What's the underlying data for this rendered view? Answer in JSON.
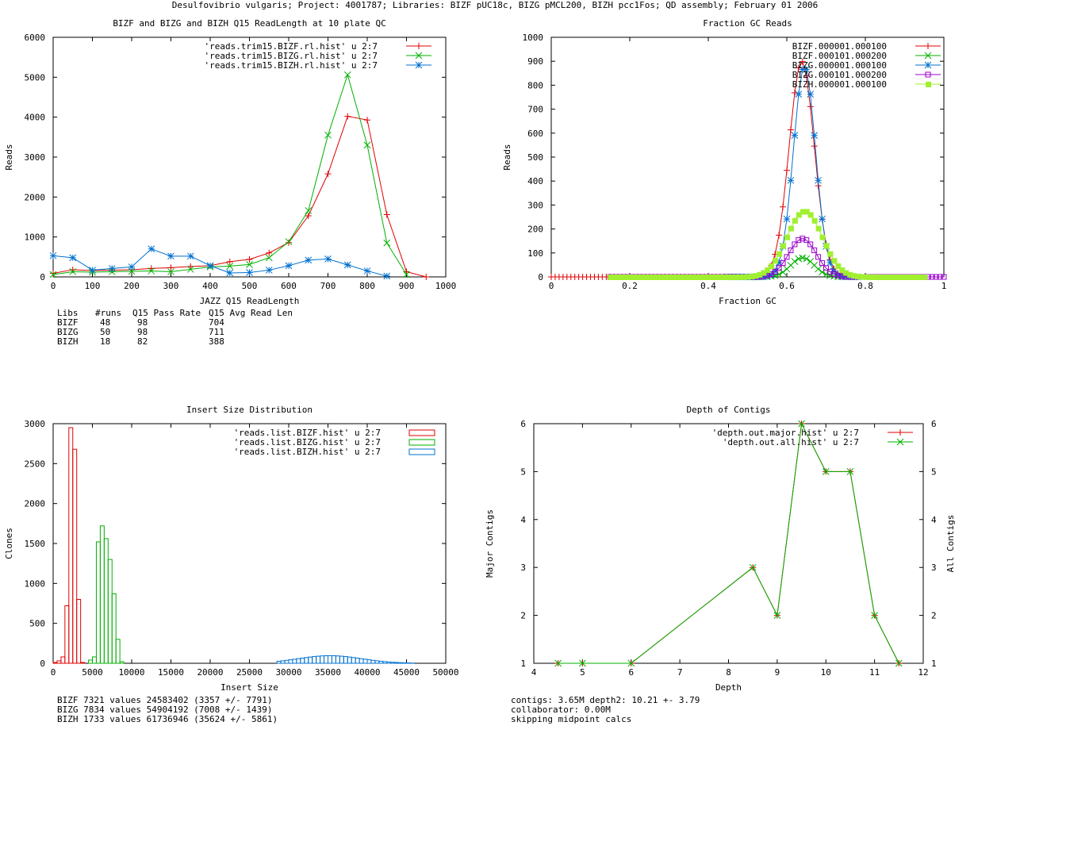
{
  "page_title": "Desulfovibrio vulgaris; Project: 4001787; Libraries: BIZF pUC18c, BIZG pMCL200, BIZH pcc1Fos; QD assembly; February 01 2006",
  "colors": {
    "red": "#e00000",
    "green": "#00b000",
    "blue": "#0070d0",
    "purple": "#9900cc",
    "lime": "#a0f030"
  },
  "chart_data": [
    {
      "id": "readlength",
      "type": "line",
      "title": "BIZF and BIZG and BIZH Q15 ReadLength at 10 plate QC",
      "xlabel": "JAZZ Q15 ReadLength",
      "ylabel": "Reads",
      "xlim": [
        0,
        1000
      ],
      "ylim": [
        0,
        6000
      ],
      "xticks": [
        0,
        100,
        200,
        300,
        400,
        500,
        600,
        700,
        800,
        900,
        1000
      ],
      "yticks": [
        0,
        1000,
        2000,
        3000,
        4000,
        5000,
        6000
      ],
      "legend_position": "top-right",
      "series": [
        {
          "name": "'reads.trim15.BIZF.rl.hist' u 2:7",
          "color": "#e00000",
          "marker": "plus",
          "x": [
            0,
            50,
            100,
            150,
            200,
            250,
            300,
            350,
            400,
            450,
            500,
            550,
            600,
            650,
            700,
            750,
            800,
            850,
            900,
            950
          ],
          "y": [
            90,
            180,
            160,
            170,
            180,
            210,
            230,
            260,
            280,
            380,
            440,
            600,
            860,
            1530,
            2580,
            4020,
            3930,
            1560,
            130,
            0
          ]
        },
        {
          "name": "'reads.trim15.BIZG.rl.hist' u 2:7",
          "color": "#00b000",
          "marker": "x",
          "x": [
            0,
            50,
            100,
            150,
            200,
            250,
            300,
            350,
            400,
            450,
            500,
            550,
            600,
            650,
            700,
            750,
            800,
            850,
            900
          ],
          "y": [
            60,
            130,
            120,
            130,
            140,
            150,
            130,
            190,
            250,
            270,
            310,
            480,
            880,
            1660,
            3550,
            5060,
            3300,
            850,
            60
          ]
        },
        {
          "name": "'reads.trim15.BIZH.rl.hist' u 2:7",
          "color": "#0070d0",
          "marker": "star",
          "x": [
            0,
            50,
            100,
            150,
            200,
            250,
            300,
            350,
            400,
            450,
            500,
            550,
            600,
            650,
            700,
            750,
            800,
            850
          ],
          "y": [
            530,
            480,
            170,
            210,
            250,
            700,
            520,
            520,
            280,
            100,
            110,
            170,
            280,
            420,
            450,
            300,
            150,
            20
          ]
        }
      ],
      "stats": {
        "header": [
          "Libs",
          "#runs",
          "Q15 Pass Rate",
          "Q15 Avg Read Len"
        ],
        "rows": [
          [
            "BIZF",
            "48",
            "98",
            "704"
          ],
          [
            "BIZG",
            "50",
            "98",
            "711"
          ],
          [
            "BIZH",
            "18",
            "82",
            "388"
          ]
        ]
      }
    },
    {
      "id": "gc",
      "type": "line",
      "title": "Fraction GC Reads",
      "xlabel": "Fraction GC",
      "ylabel": "Reads",
      "xlim": [
        0,
        1
      ],
      "ylim": [
        0,
        1000
      ],
      "xticks": [
        0,
        0.2,
        0.4,
        0.6,
        0.8,
        1
      ],
      "yticks": [
        0,
        100,
        200,
        300,
        400,
        500,
        600,
        700,
        800,
        900,
        1000
      ],
      "legend_position": "top-right",
      "series": [
        {
          "name": "BIZF.000001.000100",
          "color": "#e00000",
          "marker": "plus",
          "center": 0.638,
          "width": 0.032,
          "peak": 900,
          "xmin": 0.0,
          "xmax": 0.74,
          "step": 0.01
        },
        {
          "name": "BIZF.000101.000200",
          "color": "#00b000",
          "marker": "x",
          "center": 0.64,
          "width": 0.03,
          "peak": 80,
          "xmin": 0.5,
          "xmax": 0.75,
          "step": 0.01
        },
        {
          "name": "BIZG.000001.000100",
          "color": "#0070d0",
          "marker": "star",
          "center": 0.645,
          "width": 0.028,
          "peak": 880,
          "xmin": 0.45,
          "xmax": 0.78,
          "step": 0.01
        },
        {
          "name": "BIZG.000101.000200",
          "color": "#9900cc",
          "marker": "square",
          "center": 0.64,
          "width": 0.035,
          "peak": 160,
          "xmin": 0.15,
          "xmax": 1.0,
          "step": 0.01
        },
        {
          "name": "BIZH.000001.000100",
          "color": "#a0f030",
          "marker": "filled-square",
          "center": 0.645,
          "width": 0.045,
          "peak": 275,
          "xmin": 0.15,
          "xmax": 0.95,
          "step": 0.01
        }
      ]
    },
    {
      "id": "insert",
      "type": "histogram",
      "title": "Insert Size Distribution",
      "xlabel": "Insert Size",
      "ylabel": "Clones",
      "xlim": [
        0,
        50000
      ],
      "ylim": [
        0,
        3000
      ],
      "xticks": [
        0,
        5000,
        10000,
        15000,
        20000,
        25000,
        30000,
        35000,
        40000,
        45000,
        50000
      ],
      "yticks": [
        0,
        500,
        1000,
        1500,
        2000,
        2500,
        3000
      ],
      "legend_position": "top-right",
      "series": [
        {
          "name": "'reads.list.BIZF.hist' u 2:7",
          "color": "#e00000",
          "bins": [
            [
              0,
              10
            ],
            [
              500,
              30
            ],
            [
              1000,
              80
            ],
            [
              1500,
              720
            ],
            [
              2000,
              2950
            ],
            [
              2500,
              2680
            ],
            [
              3000,
              800
            ],
            [
              3500,
              10
            ]
          ]
        },
        {
          "name": "'reads.list.BIZG.hist' u 2:7",
          "color": "#00b000",
          "bins": [
            [
              4500,
              40
            ],
            [
              5000,
              80
            ],
            [
              5500,
              1520
            ],
            [
              6000,
              1720
            ],
            [
              6500,
              1560
            ],
            [
              7000,
              1300
            ],
            [
              7500,
              870
            ],
            [
              8000,
              300
            ],
            [
              8500,
              20
            ]
          ]
        },
        {
          "name": "'reads.list.BIZH.hist' u 2:7",
          "color": "#0070d0",
          "gauss": {
            "center": 35000,
            "width": 4000,
            "peak": 95,
            "xmin": 28500,
            "xmax": 45500,
            "binwidth": 500
          }
        }
      ],
      "stats": [
        "BIZF 7321 values 24583402 (3357 +/- 7791)",
        "BIZG 7834 values 54904192 (7008 +/- 1439)",
        "BIZH 1733 values 61736946 (35624 +/- 5861)"
      ]
    },
    {
      "id": "depth",
      "type": "line",
      "title": "Depth of Contigs",
      "xlabel": "Depth",
      "ylabel": "Major Contigs",
      "y2label": "All Contigs",
      "xlim": [
        4,
        12
      ],
      "ylim": [
        1,
        6
      ],
      "xticks": [
        4,
        5,
        6,
        7,
        8,
        9,
        10,
        11,
        12
      ],
      "yticks": [
        1,
        2,
        3,
        4,
        5,
        6
      ],
      "legend_position": "top-right",
      "series": [
        {
          "name": "'depth.out.major.hist' u 2:7",
          "color": "#e00000",
          "marker": "plus",
          "x": [
            4.5,
            5,
            6,
            8.5,
            9,
            9.5,
            10,
            10.5,
            11,
            11.5
          ],
          "y": [
            1,
            1,
            1,
            3,
            2,
            6,
            5,
            5,
            2,
            1
          ]
        },
        {
          "name": "'depth.out.all.hist' u 2:7",
          "color": "#00b000",
          "marker": "x",
          "x": [
            4.5,
            5,
            6,
            8.5,
            9,
            9.5,
            10,
            10.5,
            11,
            11.5
          ],
          "y": [
            1,
            1,
            1,
            3,
            2,
            6,
            5,
            5,
            2,
            1
          ]
        }
      ],
      "stats": [
        "contigs:     3.65M    depth2: 10.21 +- 3.79",
        "collaborator: 0.00M",
        "skipping midpoint calcs"
      ]
    }
  ]
}
